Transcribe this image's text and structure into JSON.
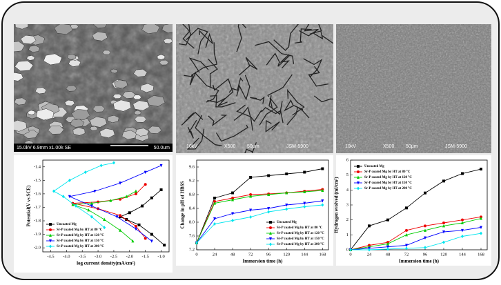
{
  "images": [
    {
      "labels": [
        "15.0kV 6.9mm x1.00k SE",
        "50.0um"
      ]
    },
    {
      "labels": [
        "10kV",
        "X500",
        "50μm",
        "JSM-5900"
      ]
    },
    {
      "labels": [
        "10kV",
        "X500",
        "50μm",
        "JSM-5900"
      ]
    }
  ],
  "chart_data": [
    {
      "type": "line",
      "xlabel": "log current density(mA/cm²)",
      "ylabel": "Potential(V vs SCE)",
      "xlim": [
        -4.75,
        -0.75
      ],
      "ylim": [
        -2.03,
        -1.35
      ],
      "xticks": [
        {
          "value": -4.5,
          "label": "-4.5"
        },
        {
          "value": -4,
          "label": "-4.0"
        },
        {
          "value": -3.5,
          "label": "-3.5"
        },
        {
          "value": -3,
          "label": "-3.0"
        },
        {
          "value": -2.5,
          "label": "-2.5"
        },
        {
          "value": -2,
          "label": "-2.0"
        },
        {
          "value": -1.5,
          "label": "-1.5"
        },
        {
          "value": -1,
          "label": "-1.0"
        }
      ],
      "yticks": [
        -1.4,
        -1.5,
        -1.6,
        -1.7,
        -1.8,
        -1.9,
        {
          "value": -2,
          "label": "-2.0"
        }
      ],
      "legend": "lower left",
      "series": [
        {
          "name": "Uncoated Mg",
          "color": "#000000",
          "marker": "square",
          "x": [
            -0.9,
            -1.3,
            -1.7,
            -2.1,
            -2.3,
            -2.0,
            -1.6,
            -1.3,
            -1.0
          ],
          "values": [
            -1.98,
            -1.9,
            -1.83,
            -1.79,
            -1.77,
            -1.74,
            -1.69,
            -1.63,
            -1.57
          ]
        },
        {
          "name": "Sr-P coated Mg by HT at 80 °C",
          "color": "#ee0000",
          "marker": "circle",
          "x": [
            -1.5,
            -1.8,
            -2.3,
            -3.0,
            -3.8,
            -3.0,
            -2.3,
            -1.8,
            -1.5
          ],
          "values": [
            -1.93,
            -1.84,
            -1.76,
            -1.71,
            -1.67,
            -1.66,
            -1.64,
            -1.6,
            -1.53
          ]
        },
        {
          "name": "Sr-P coated Mg by HT at 120 °C",
          "color": "#00cc00",
          "marker": "triangle-up",
          "x": [
            -1.9,
            -2.3,
            -2.8,
            -3.3,
            -3.8,
            -3.2,
            -2.6,
            -2.1,
            -1.8
          ],
          "values": [
            -1.95,
            -1.87,
            -1.79,
            -1.72,
            -1.68,
            -1.67,
            -1.65,
            -1.62,
            -1.58
          ]
        },
        {
          "name": "Sr-P coated Mg by HT at 150 °C",
          "color": "#0000ff",
          "marker": "triangle-down",
          "x": [
            -1.3,
            -1.8,
            -2.4,
            -3.2,
            -3.9,
            -3.1,
            -2.3,
            -1.5,
            -1.0
          ],
          "values": [
            -1.95,
            -1.86,
            -1.77,
            -1.69,
            -1.62,
            -1.58,
            -1.52,
            -1.44,
            -1.39
          ]
        },
        {
          "name": "Sr-P coated Mg by HT at 200 °C",
          "color": "#00e5ee",
          "marker": "diamond",
          "x": [
            -2.8,
            -3.2,
            -3.7,
            -4.1,
            -4.4,
            -3.9,
            -3.4,
            -2.9,
            -2.5
          ],
          "values": [
            -1.85,
            -1.77,
            -1.69,
            -1.62,
            -1.58,
            -1.5,
            -1.44,
            -1.39,
            -1.37
          ]
        }
      ]
    },
    {
      "type": "line",
      "xlabel": "Immersion time (h)",
      "ylabel": "Change in pH of HBSS",
      "xlim": [
        0,
        176
      ],
      "ylim": [
        7.2,
        9.8
      ],
      "xticks": [
        0,
        24,
        48,
        72,
        96,
        120,
        144,
        168
      ],
      "yticks": [
        7.2,
        7.6,
        {
          "value": 8,
          "label": "8.0"
        },
        8.4,
        8.8,
        9.2,
        9.6
      ],
      "legend": "lower right",
      "x": [
        0,
        24,
        48,
        72,
        96,
        120,
        144,
        168
      ],
      "series": [
        {
          "name": "Uncoated Mg",
          "color": "#000000",
          "marker": "square",
          "values": [
            7.4,
            8.7,
            8.85,
            9.3,
            9.35,
            9.4,
            9.45,
            9.55
          ]
        },
        {
          "name": "Sr-P coated Mg by HT at 80 °C",
          "color": "#ee0000",
          "marker": "circle",
          "values": [
            7.4,
            8.6,
            8.7,
            8.8,
            8.82,
            8.85,
            8.9,
            8.95
          ]
        },
        {
          "name": "Sr-P coated Mg by HT at 120 °C",
          "color": "#00cc00",
          "marker": "triangle-up",
          "values": [
            7.4,
            8.55,
            8.65,
            8.75,
            8.8,
            8.85,
            8.88,
            8.92
          ]
        },
        {
          "name": "Sr-P coated Mg by HT at 150 °C",
          "color": "#0000ff",
          "marker": "triangle-down",
          "values": [
            7.4,
            8.1,
            8.25,
            8.35,
            8.4,
            8.5,
            8.55,
            8.62
          ]
        },
        {
          "name": "Sr-P coated Mg by HT at 200 °C",
          "color": "#00e5ee",
          "marker": "diamond",
          "values": [
            7.4,
            7.95,
            8.05,
            8.15,
            8.3,
            8.38,
            8.45,
            8.5
          ]
        }
      ]
    },
    {
      "type": "line",
      "xlabel": "Immersion time (h)",
      "ylabel": "Hydrogen evolved (ml/cm²)",
      "xlim": [
        0,
        176
      ],
      "ylim": [
        0,
        6
      ],
      "xticks": [
        0,
        24,
        48,
        72,
        96,
        120,
        144,
        168
      ],
      "yticks": [
        0,
        1,
        2,
        3,
        4,
        5,
        6
      ],
      "legend": "upper left",
      "x": [
        0,
        24,
        48,
        72,
        96,
        120,
        144,
        168
      ],
      "series": [
        {
          "name": "Uncoated Mg",
          "color": "#000000",
          "marker": "square",
          "values": [
            0,
            1.6,
            2.0,
            2.8,
            3.8,
            4.6,
            5.1,
            5.4
          ]
        },
        {
          "name": "Sr-P coated Mg by HT at 80 °C",
          "color": "#ee0000",
          "marker": "circle",
          "values": [
            0,
            0.3,
            0.5,
            1.3,
            1.6,
            1.8,
            2.0,
            2.2
          ]
        },
        {
          "name": "Sr-P coated Mg by HT at 120 °C",
          "color": "#00cc00",
          "marker": "triangle-up",
          "values": [
            0,
            0.2,
            0.4,
            1.0,
            1.3,
            1.6,
            1.8,
            2.1
          ]
        },
        {
          "name": "Sr-P coated Mg by HT at 150 °C",
          "color": "#0000ff",
          "marker": "triangle-down",
          "values": [
            0,
            0.1,
            0.2,
            0.3,
            0.8,
            1.2,
            1.3,
            1.5
          ]
        },
        {
          "name": "Sr-P coated Mg by HT at 200 °C",
          "color": "#00e5ee",
          "marker": "diamond",
          "values": [
            0,
            0,
            0.05,
            0.1,
            0.15,
            0.5,
            0.9,
            1.1
          ]
        }
      ]
    }
  ]
}
